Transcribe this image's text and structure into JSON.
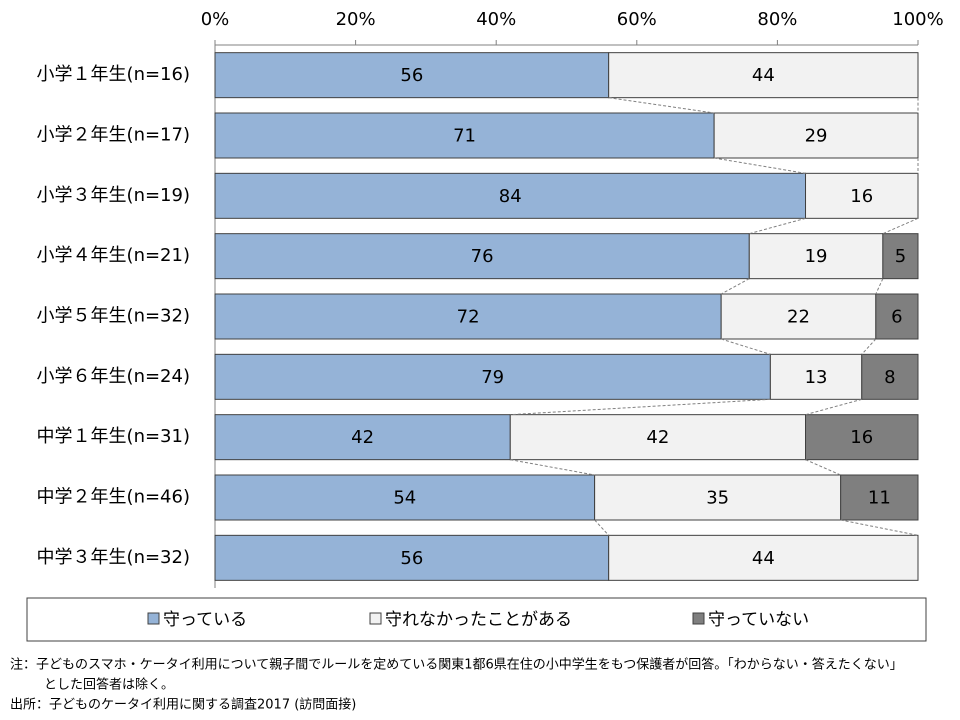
{
  "chart_data": {
    "type": "stacked-barh",
    "categories": [
      "小学１年生(n=16)",
      "小学２年生(n=17)",
      "小学３年生(n=19)",
      "小学４年生(n=21)",
      "小学５年生(n=32)",
      "小学６年生(n=24)",
      "中学１年生(n=31)",
      "中学２年生(n=46)",
      "中学３年生(n=32)"
    ],
    "series": [
      {
        "name": "守っている",
        "color": "#95b3d7",
        "values": [
          56,
          71,
          84,
          76,
          72,
          79,
          42,
          54,
          56
        ]
      },
      {
        "name": "守れなかったことがある",
        "color": "#f2f2f2",
        "values": [
          44,
          29,
          16,
          19,
          22,
          13,
          42,
          35,
          44
        ]
      },
      {
        "name": "守っていない",
        "color": "#7f7f7f",
        "values": [
          null,
          null,
          null,
          5,
          6,
          8,
          16,
          11,
          null
        ]
      }
    ],
    "xlim": [
      0,
      100
    ],
    "xticks": [
      {
        "value": 0,
        "label": "0%"
      },
      {
        "value": 20,
        "label": "20%"
      },
      {
        "value": 40,
        "label": "40%"
      },
      {
        "value": 60,
        "label": "60%"
      },
      {
        "value": 80,
        "label": "80%"
      },
      {
        "value": 100,
        "label": "100%"
      }
    ],
    "legend": "bottom",
    "notes": [
      "注：子どものスマホ・ケータイ利用について親子間でルールを定めている関東1都6県在住の小中学生をもつ保護者が回答。「わからない・答えたくない」",
      "とした回答者は除く。"
    ],
    "source": "出所：子どものケータイ利用に関する調査2017 (訪問面接)"
  }
}
